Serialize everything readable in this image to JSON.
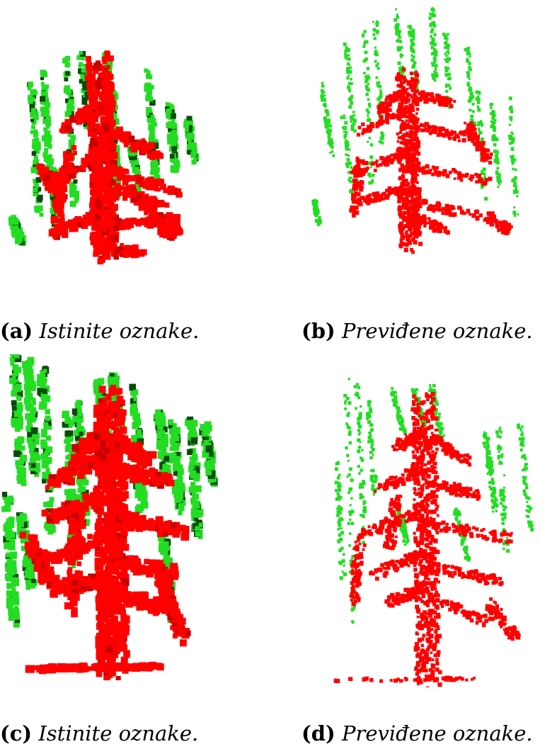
{
  "figure": {
    "subfigures": [
      {
        "id": "a",
        "label": "(a)",
        "caption": "Istinite oznake.",
        "type": "ground-truth point cloud"
      },
      {
        "id": "b",
        "label": "(b)",
        "caption": "Previđene oznake.",
        "type": "predicted point cloud"
      },
      {
        "id": "c",
        "label": "(c)",
        "caption": "Istinite oznake.",
        "type": "ground-truth point cloud"
      },
      {
        "id": "d",
        "label": "(d)",
        "caption": "Previđene oznake.",
        "type": "predicted point cloud"
      }
    ],
    "colors": {
      "trunk_branches": "#ff0000",
      "trunk_branches_dark": "#c80000",
      "foliage": "#22dd22",
      "foliage_dark": "#0a4a0a"
    }
  }
}
